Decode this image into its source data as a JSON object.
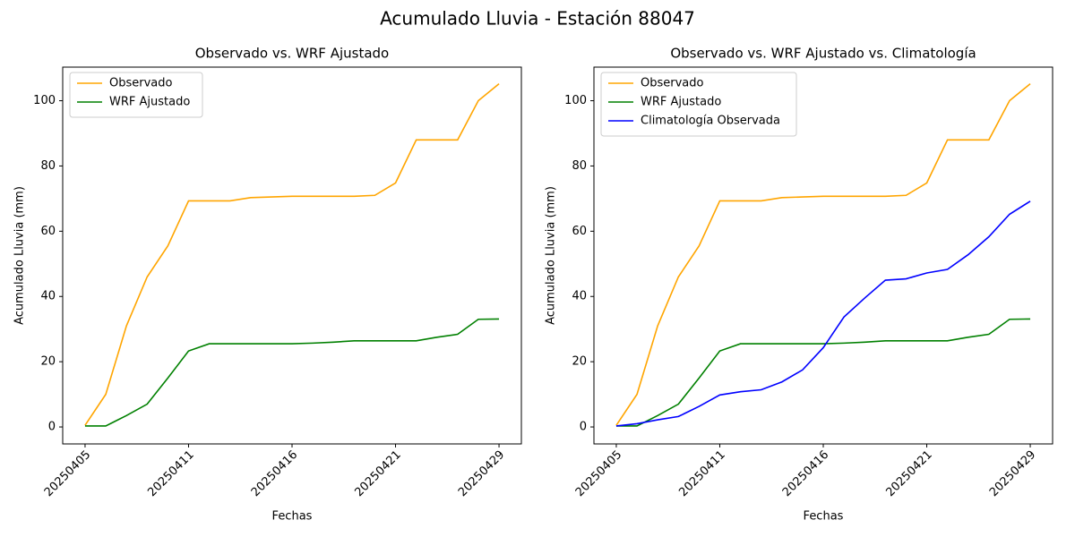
{
  "title": "Acumulado Lluvia - Estación 88047",
  "chart_data": [
    {
      "type": "line",
      "title": "Observado vs. WRF Ajustado",
      "x_label": "Fechas",
      "y_label": "Acumulado Lluvia (mm)",
      "categories": [
        "20250405",
        null,
        null,
        null,
        null,
        "20250411",
        null,
        null,
        null,
        null,
        "20250416",
        null,
        null,
        null,
        null,
        "20250421",
        null,
        null,
        null,
        null,
        "20250429"
      ],
      "series": [
        {
          "name": "Observado",
          "color": "#ffa500",
          "values": [
            0.5,
            10,
            31,
            46,
            55.5,
            69.3,
            69.3,
            69.3,
            70.3,
            70.5,
            70.7,
            70.7,
            70.7,
            70.7,
            71,
            74.8,
            88,
            88,
            88,
            100,
            105.2
          ]
        },
        {
          "name": "WRF Ajustado",
          "color": "#008000",
          "values": [
            0.3,
            0.3,
            3.5,
            7,
            15,
            23.3,
            25.5,
            25.5,
            25.5,
            25.5,
            25.5,
            25.7,
            26,
            26.4,
            26.4,
            26.4,
            26.4,
            27.5,
            28.4,
            33,
            33.1
          ]
        }
      ],
      "ylim": [
        -5.2,
        110.3
      ],
      "yticks": [
        0,
        20,
        40,
        60,
        80,
        100
      ],
      "legend": "upper left"
    },
    {
      "type": "line",
      "title": "Observado vs. WRF Ajustado vs. Climatología",
      "x_label": "Fechas",
      "y_label": "Acumulado Lluvia (mm)",
      "categories": [
        "20250405",
        null,
        null,
        null,
        null,
        "20250411",
        null,
        null,
        null,
        null,
        "20250416",
        null,
        null,
        null,
        null,
        "20250421",
        null,
        null,
        null,
        null,
        "20250429"
      ],
      "series": [
        {
          "name": "Observado",
          "color": "#ffa500",
          "values": [
            0.5,
            10,
            31,
            46,
            55.5,
            69.3,
            69.3,
            69.3,
            70.3,
            70.5,
            70.7,
            70.7,
            70.7,
            70.7,
            71,
            74.8,
            88,
            88,
            88,
            100,
            105.2
          ]
        },
        {
          "name": "WRF Ajustado",
          "color": "#008000",
          "values": [
            0.3,
            0.3,
            3.5,
            7,
            15,
            23.3,
            25.5,
            25.5,
            25.5,
            25.5,
            25.5,
            25.7,
            26,
            26.4,
            26.4,
            26.4,
            26.4,
            27.5,
            28.4,
            33,
            33.1
          ]
        },
        {
          "name": "Climatología Observada",
          "color": "#0000ff",
          "values": [
            0.3,
            1.0,
            2.2,
            3.2,
            6.3,
            9.8,
            10.8,
            11.4,
            13.8,
            17.5,
            24.3,
            33.7,
            39.5,
            45,
            45.4,
            47.2,
            48.3,
            52.8,
            58.3,
            65.2,
            69.2
          ]
        }
      ],
      "ylim": [
        -5.2,
        110.3
      ],
      "yticks": [
        0,
        20,
        40,
        60,
        80,
        100
      ],
      "legend": "upper left"
    }
  ]
}
